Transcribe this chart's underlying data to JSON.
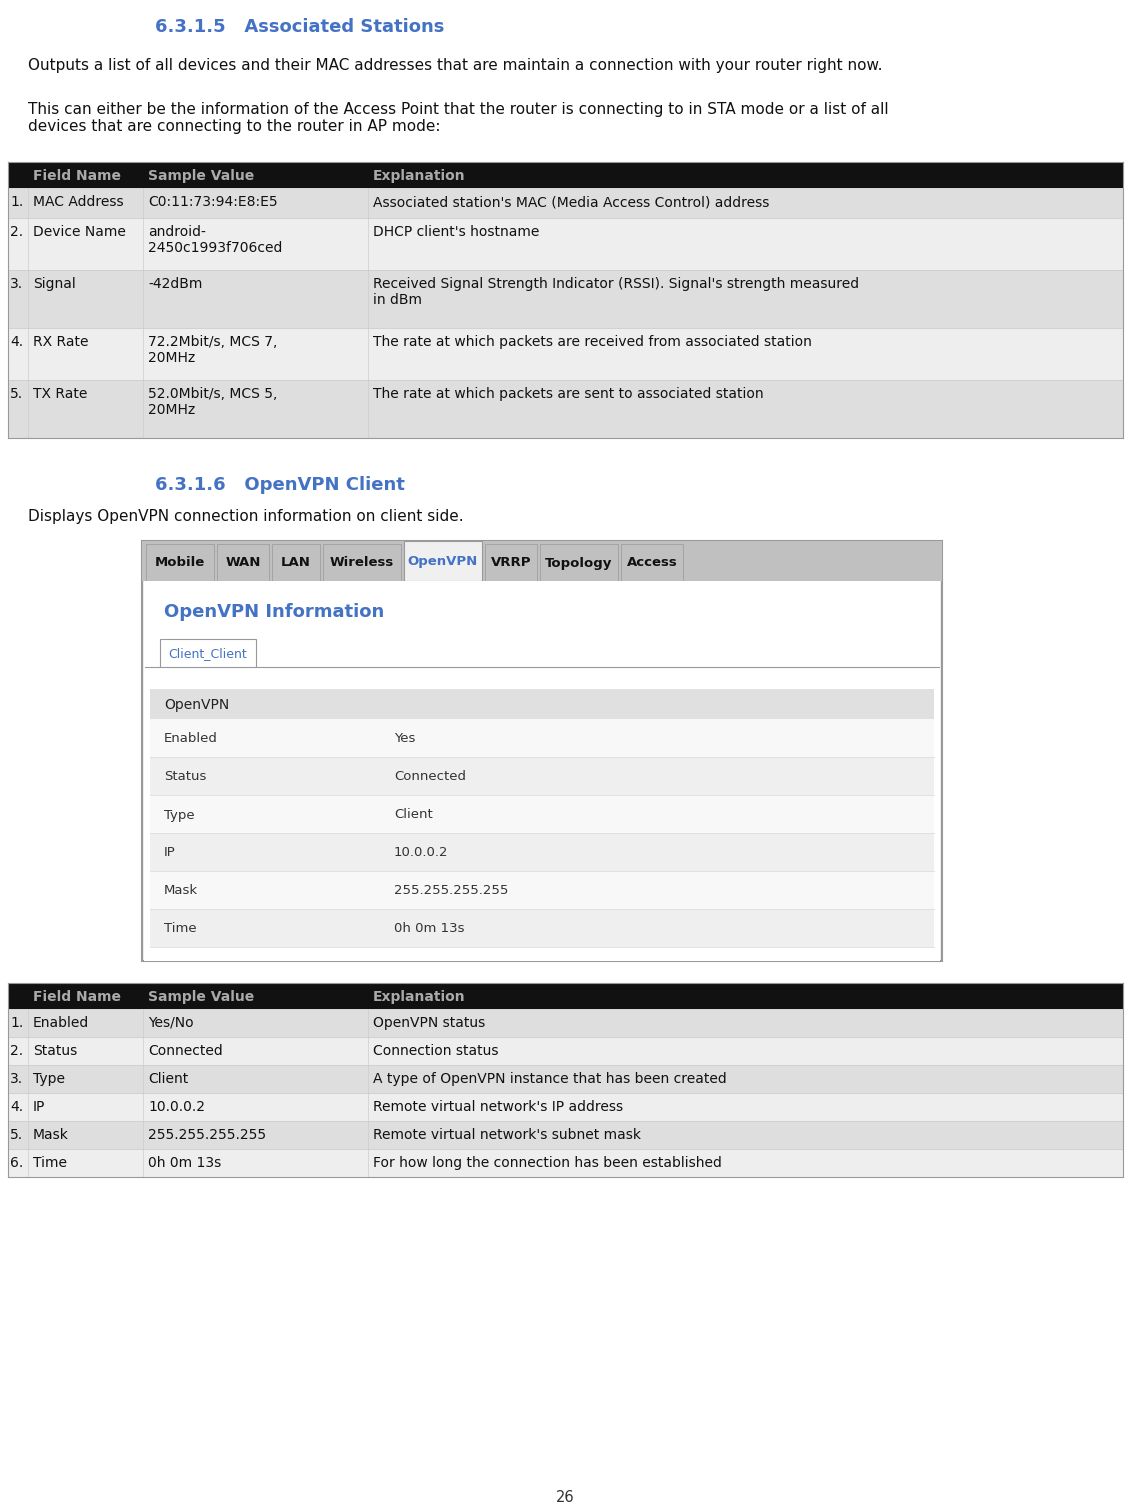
{
  "section1_title": "6.3.1.5   Associated Stations",
  "section1_para1": "Outputs a list of all devices and their MAC addresses that are maintain a connection with your router right now.",
  "section1_para2": "This can either be the information of the Access Point that the router is connecting to in STA mode or a list of all\ndevices that are connecting to the router in AP mode:",
  "table1_header": [
    "",
    "Field Name",
    "Sample Value",
    "Explanation"
  ],
  "table1_rows": [
    [
      "1.",
      "MAC Address",
      "C0:11:73:94:E8:E5",
      "Associated station's MAC (Media Access Control) address"
    ],
    [
      "2.",
      "Device Name",
      "android-\n2450c1993f706ced",
      "DHCP client's hostname"
    ],
    [
      "3.",
      "Signal",
      "-42dBm",
      "Received Signal Strength Indicator (RSSI). Signal's strength measured\nin dBm"
    ],
    [
      "4.",
      "RX Rate",
      "72.2Mbit/s, MCS 7,\n20MHz",
      "The rate at which packets are received from associated station"
    ],
    [
      "5.",
      "TX Rate",
      "52.0Mbit/s, MCS 5,\n20MHz",
      "The rate at which packets are sent to associated station"
    ]
  ],
  "table1_row_heights": [
    30,
    52,
    58,
    52,
    58
  ],
  "section2_title": "6.3.1.6   OpenVPN Client",
  "section2_para": "Displays OpenVPN connection information on client side.",
  "ui_tabs": [
    "Mobile",
    "WAN",
    "LAN",
    "Wireless",
    "OpenVPN",
    "VRRP",
    "Topology",
    "Access"
  ],
  "ui_active_tab": "OpenVPN",
  "ui_title": "OpenVPN Information",
  "ui_subtab": "Client_Client",
  "ui_section_header": "OpenVPN",
  "ui_rows": [
    [
      "Enabled",
      "Yes"
    ],
    [
      "Status",
      "Connected"
    ],
    [
      "Type",
      "Client"
    ],
    [
      "IP",
      "10.0.0.2"
    ],
    [
      "Mask",
      "255.255.255.255"
    ],
    [
      "Time",
      "0h 0m 13s"
    ]
  ],
  "table2_header": [
    "",
    "Field Name",
    "Sample Value",
    "Explanation"
  ],
  "table2_rows": [
    [
      "1.",
      "Enabled",
      "Yes/No",
      "OpenVPN status"
    ],
    [
      "2.",
      "Status",
      "Connected",
      "Connection status"
    ],
    [
      "3.",
      "Type",
      "Client",
      "A type of OpenVPN instance that has been created"
    ],
    [
      "4.",
      "IP",
      "10.0.0.2",
      "Remote virtual network's IP address"
    ],
    [
      "5.",
      "Mask",
      "255.255.255.255",
      "Remote virtual network's subnet mask"
    ],
    [
      "6.",
      "Time",
      "0h 0m 13s",
      "For how long the connection has been established"
    ]
  ],
  "page_number": "26",
  "title_color": "#4472C4",
  "table_header_bg": "#111111",
  "table_header_fg": "#aaaaaa",
  "table_row_odd_bg": "#dedede",
  "table_row_even_bg": "#eeeeee",
  "ui_border_color": "#999999",
  "blue_color": "#4472C4",
  "tab_bg": "#c0c0c0",
  "tab_active_bg": "#f0f0f0",
  "ui_content_bg": "#ffffff",
  "ui_outer_bg": "#f0f0f0",
  "ui_section_hdr_bg": "#e0e0e0",
  "ui_row_bg_odd": "#f8f8f8",
  "ui_row_bg_even": "#efefef"
}
